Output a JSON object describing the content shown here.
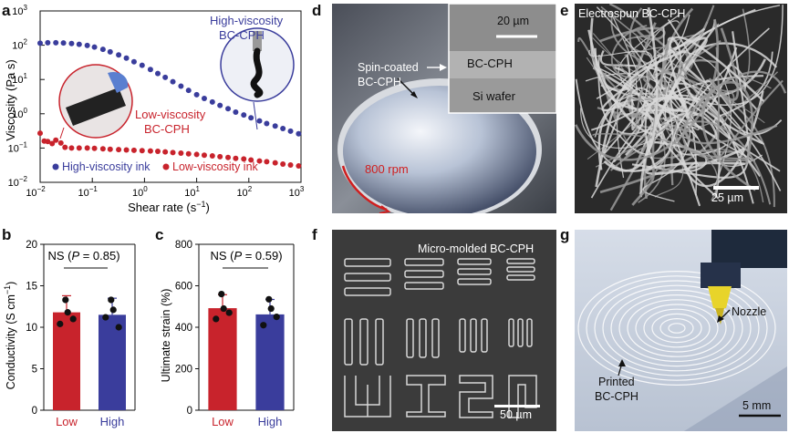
{
  "panel_labels": {
    "a": "a",
    "b": "b",
    "c": "c",
    "d": "d",
    "e": "e",
    "f": "f",
    "g": "g"
  },
  "chart_data": [
    {
      "panel": "a",
      "type": "scatter",
      "xscale": "log",
      "yscale": "log",
      "xlim": [
        0.01,
        1000
      ],
      "ylim": [
        0.01,
        1000
      ],
      "xlabel": "Shear rate (s",
      "xlabel_sup": "−1",
      "xlabel_end": ")",
      "ylabel": "Viscosity (Pa s)",
      "xticks": [
        "10",
        "10",
        "10",
        "10",
        "10",
        "10"
      ],
      "xtick_exps": [
        "−2",
        "−1",
        "0",
        "1",
        "2",
        "3"
      ],
      "yticks": [
        "10",
        "10",
        "10",
        "10",
        "10",
        "10"
      ],
      "ytick_exps": [
        "−2",
        "−1",
        "0",
        "1",
        "2",
        "3"
      ],
      "annotations": {
        "high_line1": "High-viscosity",
        "high_line2": "BC-CPH",
        "low_line1": "Low-viscosity",
        "low_line2": "BC-CPH"
      },
      "legend": [
        "High-viscosity ink",
        "Low-viscosity ink"
      ],
      "colors": {
        "high": "#3a3d9c",
        "low": "#c8232c"
      },
      "series": [
        {
          "name": "High-viscosity ink",
          "x": [
            0.01,
            0.014,
            0.02,
            0.028,
            0.04,
            0.056,
            0.08,
            0.11,
            0.16,
            0.22,
            0.32,
            0.45,
            0.63,
            0.9,
            1.3,
            1.8,
            2.5,
            3.5,
            5,
            7,
            10,
            14,
            20,
            28,
            40,
            56,
            80,
            110,
            160,
            220,
            320,
            450,
            630,
            900
          ],
          "y": [
            115,
            118,
            118,
            116,
            112,
            106,
            98,
            88,
            76,
            64,
            52,
            42,
            33,
            26,
            19.5,
            15,
            11.5,
            8.6,
            6.4,
            4.8,
            3.6,
            2.8,
            2.2,
            1.75,
            1.4,
            1.12,
            0.92,
            0.76,
            0.62,
            0.52,
            0.44,
            0.37,
            0.31,
            0.26
          ]
        },
        {
          "name": "Low-viscosity ink",
          "x": [
            0.01,
            0.012,
            0.014,
            0.017,
            0.02,
            0.025,
            0.03,
            0.04,
            0.056,
            0.08,
            0.11,
            0.16,
            0.22,
            0.32,
            0.45,
            0.63,
            0.9,
            1.3,
            1.8,
            2.5,
            3.5,
            5,
            7,
            10,
            14,
            20,
            28,
            40,
            56,
            80,
            110,
            160,
            220,
            320,
            450,
            630,
            900
          ],
          "y": [
            0.27,
            0.16,
            0.155,
            0.135,
            0.17,
            0.14,
            0.105,
            0.1,
            0.1,
            0.1,
            0.098,
            0.095,
            0.092,
            0.09,
            0.088,
            0.086,
            0.084,
            0.082,
            0.08,
            0.077,
            0.074,
            0.071,
            0.068,
            0.065,
            0.062,
            0.059,
            0.056,
            0.053,
            0.05,
            0.048,
            0.045,
            0.042,
            0.04,
            0.037,
            0.034,
            0.032,
            0.03
          ]
        }
      ]
    },
    {
      "panel": "b",
      "type": "bar",
      "categories": [
        "Low",
        "High"
      ],
      "values": [
        11.8,
        11.5
      ],
      "errors": [
        2.0,
        2.0
      ],
      "points": [
        [
          13.3,
          11.8,
          10.4,
          11.0
        ],
        [
          13.3,
          12.1,
          11.2,
          10.0
        ]
      ],
      "ylabel": "Conductivity (S cm",
      "ylabel_sup": "−1",
      "ylabel_end": ")",
      "ylim": [
        0,
        20
      ],
      "yticks": [
        "0",
        "5",
        "10",
        "15",
        "20"
      ],
      "ns_text": "NS (",
      "ns_p": "P",
      "ns_val": " = 0.85)",
      "colors": [
        "#c8232c",
        "#3a3d9c"
      ]
    },
    {
      "panel": "c",
      "type": "bar",
      "categories": [
        "Low",
        "High"
      ],
      "values": [
        492,
        462
      ],
      "errors": [
        65,
        72
      ],
      "points": [
        [
          560,
          490,
          440,
          470
        ],
        [
          535,
          490,
          410,
          450
        ]
      ],
      "ylabel": "Ultimate strain (%)",
      "ylim": [
        0,
        800
      ],
      "yticks": [
        "0",
        "200",
        "400",
        "600",
        "800"
      ],
      "ns_text": "NS (",
      "ns_p": "P",
      "ns_val": " = 0.59)",
      "colors": [
        "#c8232c",
        "#3a3d9c"
      ]
    }
  ],
  "panel_d": {
    "inset_scale": "20 µm",
    "layer_top": "BC-CPH",
    "layer_bottom": "Si wafer",
    "label1": "Spin-coated",
    "label2": "BC-CPH",
    "rpm": "800 rpm"
  },
  "panel_e": {
    "title": "Electrospun BC-CPH",
    "scale": "25 µm"
  },
  "panel_f": {
    "title": "Micro-molded BC-CPH",
    "scale": "50 µm"
  },
  "panel_g": {
    "nozzle": "Nozzle",
    "printed1": "Printed",
    "printed2": "BC-CPH",
    "scale": "5 mm"
  }
}
